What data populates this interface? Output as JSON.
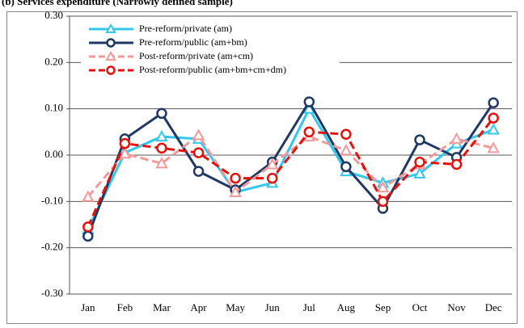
{
  "chart_data": {
    "type": "line",
    "title": "(b) Services expenditure (Narrowly defined sample)",
    "categories": [
      "Jan",
      "Feb",
      "Mar",
      "Apr",
      "May",
      "Jun",
      "Jul",
      "Aug",
      "Sep",
      "Oct",
      "Nov",
      "Dec"
    ],
    "series": [
      {
        "name": "Pre-reform/private (am)",
        "color": "#33c7ee",
        "dash": false,
        "marker": "triangle",
        "values": [
          -0.16,
          0.005,
          0.04,
          0.035,
          -0.08,
          -0.06,
          0.1,
          -0.035,
          -0.06,
          -0.04,
          0.025,
          0.055
        ]
      },
      {
        "name": "Pre-reform/public (am+bm)",
        "color": "#1f3864",
        "dash": false,
        "marker": "circle",
        "values": [
          -0.175,
          0.035,
          0.09,
          -0.035,
          -0.075,
          -0.015,
          0.115,
          -0.025,
          -0.115,
          0.033,
          -0.005,
          0.113
        ]
      },
      {
        "name": "Post-reform/private (am+cm)",
        "color": "#f29a9a",
        "dash": true,
        "marker": "triangle",
        "values": [
          -0.09,
          0.003,
          -0.018,
          0.043,
          -0.08,
          -0.02,
          0.04,
          0.01,
          -0.07,
          -0.02,
          0.035,
          0.015
        ]
      },
      {
        "name": "Post-reform/public (am+bm+cm+dm)",
        "color": "#e3120b",
        "dash": true,
        "marker": "circle",
        "values": [
          -0.155,
          0.025,
          0.015,
          0.005,
          -0.05,
          -0.05,
          0.05,
          0.045,
          -0.1,
          -0.015,
          -0.02,
          0.08
        ]
      }
    ],
    "ylim": [
      -0.3,
      0.3
    ],
    "yticks": [
      {
        "value": -0.3,
        "label": "-0.30"
      },
      {
        "value": -0.2,
        "label": "-0.20"
      },
      {
        "value": -0.1,
        "label": "-0.10"
      },
      {
        "value": 0,
        "label": "0.00"
      },
      {
        "value": 0.1,
        "label": "0.10"
      },
      {
        "value": 0.2,
        "label": "0.20"
      },
      {
        "value": 0.3,
        "label": "0.30"
      }
    ],
    "grid": true
  }
}
